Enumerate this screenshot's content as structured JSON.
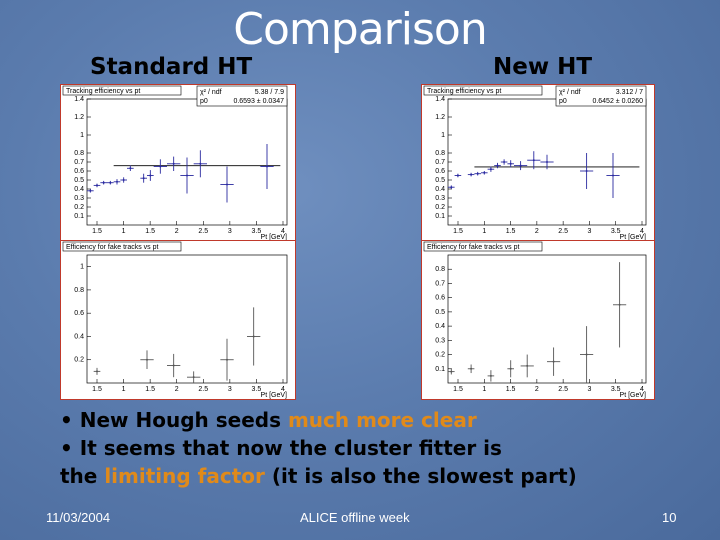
{
  "slide": {
    "title": "Comparison",
    "left_heading": "Standard HT",
    "right_heading": "New HT"
  },
  "plots": {
    "left": {
      "eff_title": "Tracking efficiency vs pt",
      "eff_stats": [
        {
          "label": "χ² / ndf",
          "value": "5.38 / 7.9"
        },
        {
          "label": "p0",
          "value": "0.6593 ± 0.0347"
        }
      ],
      "eff_xlabel": "Pt [GeV]",
      "fake_title": "Efficiency for fake tracks vs pt",
      "fake_xlabel": "Pt [GeV]"
    },
    "right": {
      "eff_title": "Tracking efficiency vs pt",
      "eff_stats": [
        {
          "label": "χ² / ndf",
          "value": "3.312 / 7"
        },
        {
          "label": "p0",
          "value": "0.6452 ± 0.0260"
        }
      ],
      "eff_xlabel": "Pt [GeV]",
      "fake_title": "Efficiency for fake tracks vs pt",
      "fake_xlabel": "Pt [GeV]"
    }
  },
  "chart_data": [
    {
      "type": "scatter",
      "title": "Tracking efficiency vs pt",
      "panel": "left-eff",
      "xlabel": "Pt [GeV]",
      "xlim": [
        1,
        4
      ],
      "ylim": [
        0,
        1.4
      ],
      "yticks": [
        "0.1",
        "0.2",
        "0.3",
        "0.4",
        "0.5",
        "0.6",
        "0.7",
        "0.8",
        "1",
        "1.2",
        "1.4"
      ],
      "xticks": [
        "1.5",
        "1",
        "1.5",
        "2",
        "2.5",
        "3",
        "3.5",
        "4"
      ],
      "fit_p0": 0.6593,
      "points": [
        {
          "x": 1.05,
          "y": 0.38,
          "ex": 0.05,
          "ey": 0.02
        },
        {
          "x": 1.15,
          "y": 0.44,
          "ex": 0.05,
          "ey": 0.02
        },
        {
          "x": 1.25,
          "y": 0.47,
          "ex": 0.05,
          "ey": 0.02
        },
        {
          "x": 1.35,
          "y": 0.47,
          "ex": 0.05,
          "ey": 0.02
        },
        {
          "x": 1.45,
          "y": 0.48,
          "ex": 0.05,
          "ey": 0.03
        },
        {
          "x": 1.55,
          "y": 0.5,
          "ex": 0.05,
          "ey": 0.03
        },
        {
          "x": 1.65,
          "y": 0.63,
          "ex": 0.05,
          "ey": 0.03
        },
        {
          "x": 1.85,
          "y": 0.52,
          "ex": 0.05,
          "ey": 0.05
        },
        {
          "x": 1.95,
          "y": 0.55,
          "ex": 0.05,
          "ey": 0.06
        },
        {
          "x": 2.1,
          "y": 0.65,
          "ex": 0.1,
          "ey": 0.08
        },
        {
          "x": 2.3,
          "y": 0.68,
          "ex": 0.1,
          "ey": 0.08
        },
        {
          "x": 2.5,
          "y": 0.55,
          "ex": 0.1,
          "ey": 0.2
        },
        {
          "x": 2.7,
          "y": 0.68,
          "ex": 0.1,
          "ey": 0.15
        },
        {
          "x": 3.1,
          "y": 0.45,
          "ex": 0.1,
          "ey": 0.2
        },
        {
          "x": 3.7,
          "y": 0.65,
          "ex": 0.1,
          "ey": 0.25
        }
      ]
    },
    {
      "type": "scatter",
      "title": "Efficiency for fake tracks vs pt",
      "panel": "left-fake",
      "xlabel": "Pt [GeV]",
      "xlim": [
        1,
        4
      ],
      "ylim": [
        0,
        1.1
      ],
      "yticks": [
        "0.2",
        "0.4",
        "0.6",
        "0.8",
        "1"
      ],
      "xticks": [
        "1.5",
        "1",
        "1.5",
        "2",
        "2.5",
        "3",
        "3.5",
        "4"
      ],
      "points": [
        {
          "x": 1.15,
          "y": 0.1,
          "ex": 0.05,
          "ey": 0.03
        },
        {
          "x": 1.9,
          "y": 0.2,
          "ex": 0.1,
          "ey": 0.08
        },
        {
          "x": 2.3,
          "y": 0.15,
          "ex": 0.1,
          "ey": 0.1
        },
        {
          "x": 2.6,
          "y": 0.05,
          "ex": 0.1,
          "ey": 0.05
        },
        {
          "x": 3.1,
          "y": 0.2,
          "ex": 0.1,
          "ey": 0.18
        },
        {
          "x": 3.5,
          "y": 0.4,
          "ex": 0.1,
          "ey": 0.25
        }
      ]
    },
    {
      "type": "scatter",
      "title": "Tracking efficiency vs pt",
      "panel": "right-eff",
      "xlabel": "Pt [GeV]",
      "xlim": [
        1,
        4
      ],
      "ylim": [
        0,
        1.4
      ],
      "yticks": [
        "0.1",
        "0.2",
        "0.3",
        "0.4",
        "0.5",
        "0.6",
        "0.7",
        "0.8",
        "1",
        "1.2",
        "1.4"
      ],
      "xticks": [
        "1.5",
        "1",
        "1.5",
        "2",
        "2.5",
        "3",
        "3.5",
        "4"
      ],
      "fit_p0": 0.6452,
      "points": [
        {
          "x": 1.05,
          "y": 0.42,
          "ex": 0.05,
          "ey": 0.02
        },
        {
          "x": 1.15,
          "y": 0.55,
          "ex": 0.05,
          "ey": 0.02
        },
        {
          "x": 1.35,
          "y": 0.56,
          "ex": 0.05,
          "ey": 0.02
        },
        {
          "x": 1.45,
          "y": 0.57,
          "ex": 0.05,
          "ey": 0.02
        },
        {
          "x": 1.55,
          "y": 0.58,
          "ex": 0.05,
          "ey": 0.02
        },
        {
          "x": 1.65,
          "y": 0.62,
          "ex": 0.05,
          "ey": 0.03
        },
        {
          "x": 1.75,
          "y": 0.66,
          "ex": 0.05,
          "ey": 0.03
        },
        {
          "x": 1.85,
          "y": 0.7,
          "ex": 0.05,
          "ey": 0.03
        },
        {
          "x": 1.95,
          "y": 0.68,
          "ex": 0.05,
          "ey": 0.04
        },
        {
          "x": 2.1,
          "y": 0.66,
          "ex": 0.1,
          "ey": 0.05
        },
        {
          "x": 2.3,
          "y": 0.72,
          "ex": 0.1,
          "ey": 0.1
        },
        {
          "x": 2.5,
          "y": 0.7,
          "ex": 0.1,
          "ey": 0.08
        },
        {
          "x": 3.1,
          "y": 0.6,
          "ex": 0.1,
          "ey": 0.2
        },
        {
          "x": 3.5,
          "y": 0.55,
          "ex": 0.1,
          "ey": 0.25
        }
      ]
    },
    {
      "type": "scatter",
      "title": "Efficiency for fake tracks vs pt",
      "panel": "right-fake",
      "xlabel": "Pt [GeV]",
      "xlim": [
        1,
        4
      ],
      "ylim": [
        0,
        0.9
      ],
      "yticks": [
        "0.1",
        "0.2",
        "0.3",
        "0.4",
        "0.5",
        "0.6",
        "0.7",
        "0.8"
      ],
      "xticks": [
        "1.5",
        "1",
        "1.5",
        "2",
        "2.5",
        "3",
        "3.5",
        "4"
      ],
      "points": [
        {
          "x": 1.05,
          "y": 0.08,
          "ex": 0.05,
          "ey": 0.02
        },
        {
          "x": 1.35,
          "y": 0.1,
          "ex": 0.05,
          "ey": 0.03
        },
        {
          "x": 1.65,
          "y": 0.05,
          "ex": 0.05,
          "ey": 0.04
        },
        {
          "x": 1.95,
          "y": 0.1,
          "ex": 0.05,
          "ey": 0.06
        },
        {
          "x": 2.2,
          "y": 0.12,
          "ex": 0.1,
          "ey": 0.08
        },
        {
          "x": 2.6,
          "y": 0.15,
          "ex": 0.1,
          "ey": 0.1
        },
        {
          "x": 3.1,
          "y": 0.2,
          "ex": 0.1,
          "ey": 0.2
        },
        {
          "x": 3.6,
          "y": 0.55,
          "ex": 0.1,
          "ey": 0.3
        }
      ]
    }
  ],
  "bullets": [
    {
      "parts": [
        {
          "text": "• New Hough seeds ",
          "hl": false
        },
        {
          "text": "much more clear",
          "hl": true
        }
      ]
    },
    {
      "parts": [
        {
          "text": "• It seems that now the cluster fitter is",
          "hl": false
        }
      ]
    },
    {
      "parts": [
        {
          "text": "the ",
          "hl": false
        },
        {
          "text": "limiting factor",
          "hl": true
        },
        {
          "text": " (it is also the slowest part)",
          "hl": false
        }
      ]
    }
  ],
  "footer": {
    "date": "11/03/2004",
    "center": "ALICE offline week",
    "page": "10"
  }
}
